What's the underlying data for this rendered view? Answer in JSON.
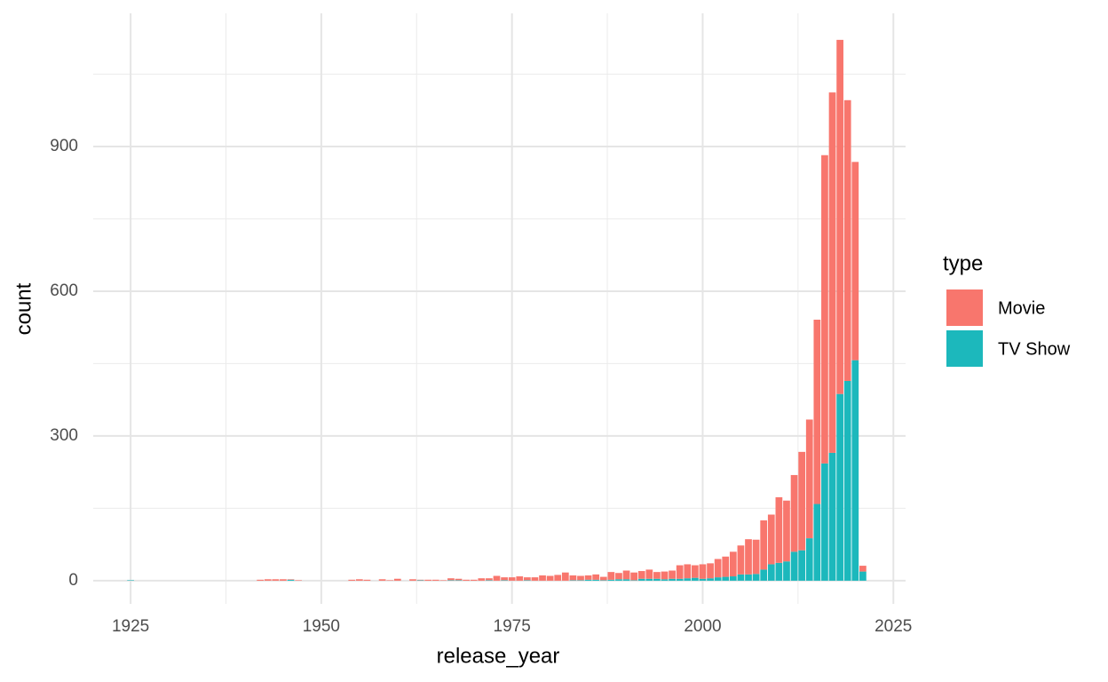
{
  "chart_data": {
    "type": "bar",
    "stacked": true,
    "x_label": "release_year",
    "y_label": "count",
    "legend_title": "type",
    "legend_position": "right",
    "grid": true,
    "x": [
      1925,
      1942,
      1943,
      1944,
      1945,
      1946,
      1947,
      1954,
      1955,
      1956,
      1958,
      1959,
      1960,
      1962,
      1963,
      1964,
      1965,
      1966,
      1967,
      1968,
      1969,
      1970,
      1971,
      1972,
      1973,
      1974,
      1975,
      1976,
      1977,
      1978,
      1979,
      1980,
      1981,
      1982,
      1983,
      1984,
      1985,
      1986,
      1987,
      1988,
      1989,
      1990,
      1991,
      1992,
      1993,
      1994,
      1995,
      1996,
      1997,
      1998,
      1999,
      2000,
      2001,
      2002,
      2003,
      2004,
      2005,
      2006,
      2007,
      2008,
      2009,
      2010,
      2011,
      2012,
      2013,
      2014,
      2015,
      2016,
      2017,
      2018,
      2019,
      2020,
      2021
    ],
    "series": [
      {
        "name": "Movie",
        "color": "#F8766D",
        "values": [
          0,
          2,
          3,
          3,
          3,
          1,
          1,
          2,
          3,
          2,
          3,
          1,
          4,
          3,
          1,
          2,
          2,
          1,
          4,
          3,
          2,
          2,
          5,
          4,
          10,
          6,
          7,
          9,
          6,
          7,
          11,
          10,
          12,
          17,
          10,
          9,
          9,
          11,
          7,
          16,
          13,
          18,
          16,
          16,
          19,
          14,
          16,
          17,
          28,
          29,
          26,
          30,
          31,
          38,
          42,
          51,
          60,
          73,
          71,
          102,
          103,
          136,
          126,
          159,
          204,
          246,
          382,
          639,
          747,
          734,
          582,
          411,
          12
        ]
      },
      {
        "name": "TV Show",
        "color": "#1CB8BC",
        "values": [
          1,
          0,
          0,
          0,
          0,
          2,
          0,
          0,
          0,
          0,
          0,
          0,
          0,
          0,
          1,
          0,
          0,
          0,
          1,
          1,
          0,
          0,
          0,
          1,
          0,
          1,
          0,
          0,
          1,
          0,
          0,
          0,
          0,
          0,
          1,
          1,
          2,
          2,
          1,
          2,
          3,
          3,
          1,
          4,
          4,
          4,
          3,
          4,
          4,
          5,
          6,
          4,
          5,
          7,
          8,
          9,
          13,
          13,
          14,
          23,
          34,
          37,
          40,
          60,
          63,
          88,
          159,
          243,
          265,
          387,
          414,
          457,
          19
        ]
      }
    ],
    "xlim": [
      1920.1,
      2026.6
    ],
    "xticks": [
      1925,
      1950,
      1975,
      2000,
      2025
    ],
    "x_minor_ticks": [
      1937.5,
      1962.5,
      1987.5,
      2012.5
    ],
    "ylim": [
      -48,
      1176
    ],
    "yticks": [
      0,
      300,
      600,
      900
    ],
    "y_minor_ticks": [
      150,
      450,
      750,
      1050
    ]
  }
}
